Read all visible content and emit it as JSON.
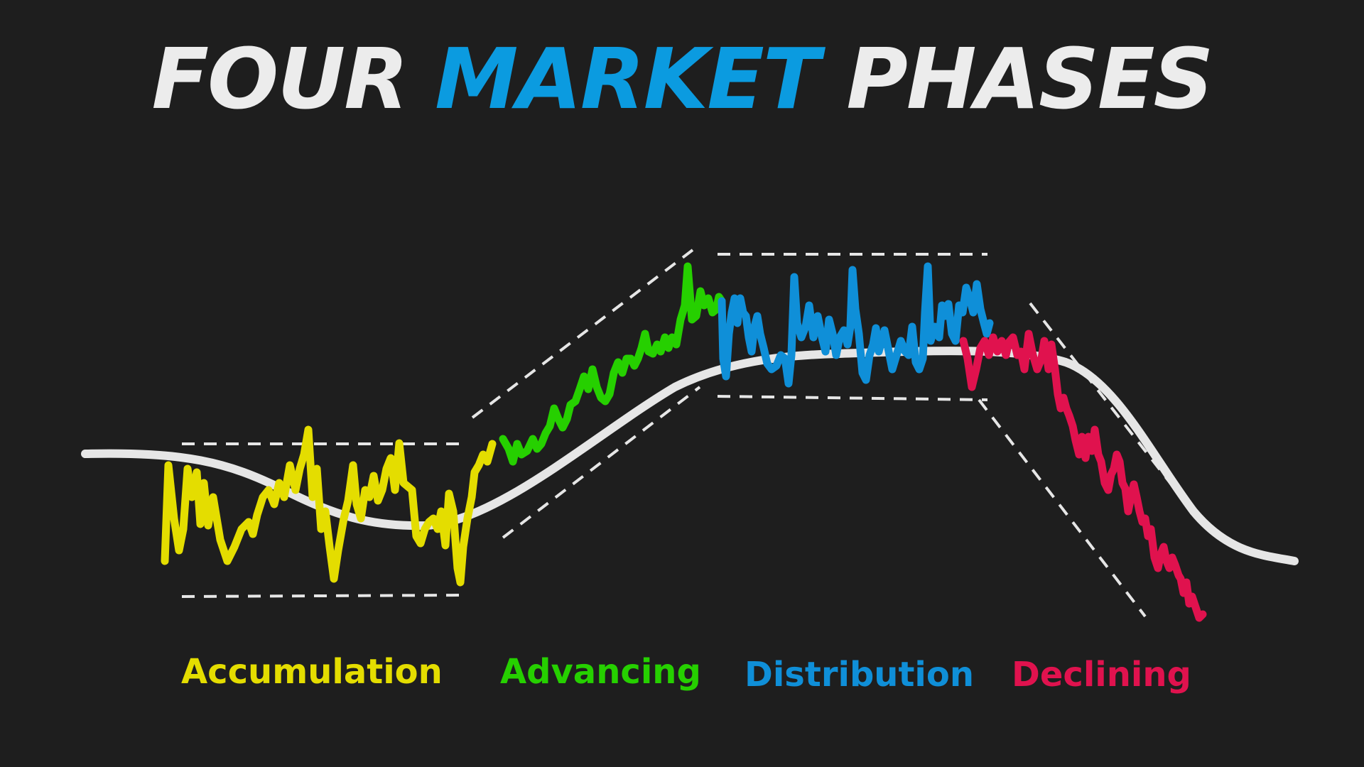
{
  "title": {
    "word1": "FOUR",
    "word2": "MARKET",
    "word3": "PHASES",
    "color_main": "#ececec",
    "color_accent": "#0b9be0"
  },
  "phases": [
    {
      "id": "accumulation",
      "label": "Accumulation",
      "color": "#e4dd00"
    },
    {
      "id": "advancing",
      "label": "Advancing",
      "color": "#26d000"
    },
    {
      "id": "distribution",
      "label": "Distribution",
      "color": "#0f8fd8"
    },
    {
      "id": "declining",
      "label": "Declining",
      "color": "#e0124e"
    }
  ],
  "colors": {
    "background": "#1e1e1e",
    "trend_line": "#e6e6e6",
    "channel_lines": "#e6e6e6"
  }
}
